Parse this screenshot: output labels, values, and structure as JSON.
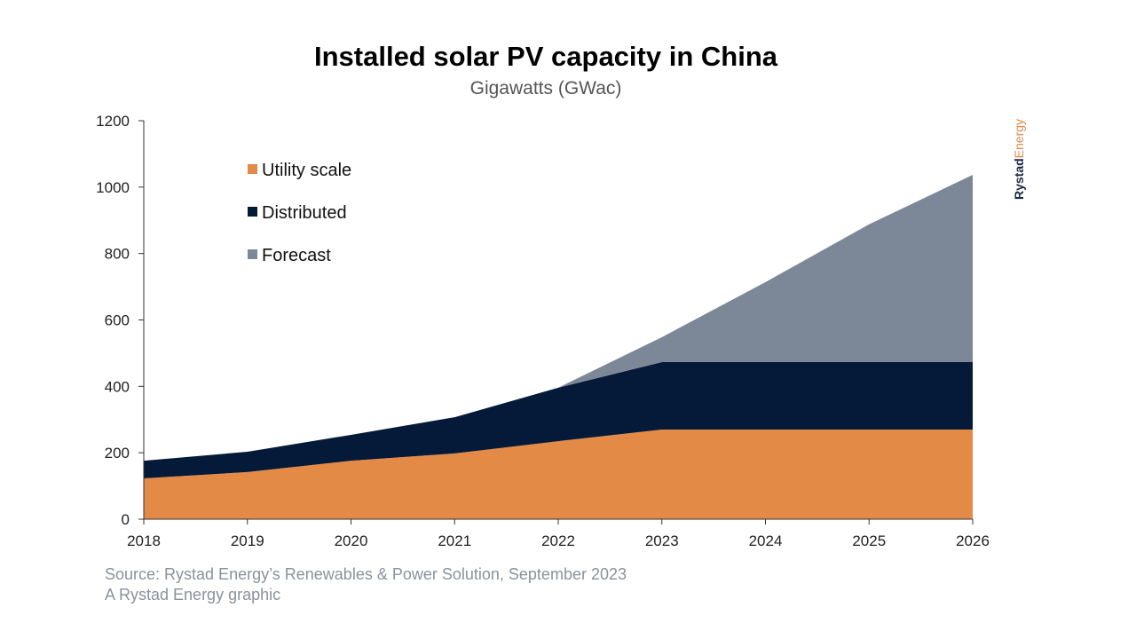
{
  "chart_data": {
    "type": "area",
    "stacked": true,
    "title": "Installed solar PV capacity in China",
    "subtitle": "Gigawatts (GWac)",
    "categories": [
      "2018",
      "2019",
      "2020",
      "2021",
      "2022",
      "2023",
      "2024",
      "2025",
      "2026"
    ],
    "series": [
      {
        "name": "Utility scale",
        "color": "#e48a47",
        "values": [
          123,
          142,
          176,
          198,
          235,
          270,
          270,
          270,
          270
        ]
      },
      {
        "name": "Distributed",
        "color": "#051a38",
        "values": [
          53,
          61,
          78,
          109,
          161,
          203,
          203,
          203,
          203
        ]
      },
      {
        "name": "Forecast",
        "color": "#7c8797",
        "values": [
          0,
          0,
          0,
          0,
          0,
          75,
          241,
          415,
          564
        ]
      }
    ],
    "ylim": [
      0,
      1200
    ],
    "yticks": [
      "0",
      "200",
      "400",
      "600",
      "800",
      "1000",
      "1200"
    ],
    "grid": false,
    "legend": "top-left"
  },
  "source": "Source: Rystad Energy’s Renewables & Power Solution, September 2023",
  "credit": "A Rystad Energy graphic",
  "logo": {
    "a": "Rystad",
    "b": "Energy"
  }
}
